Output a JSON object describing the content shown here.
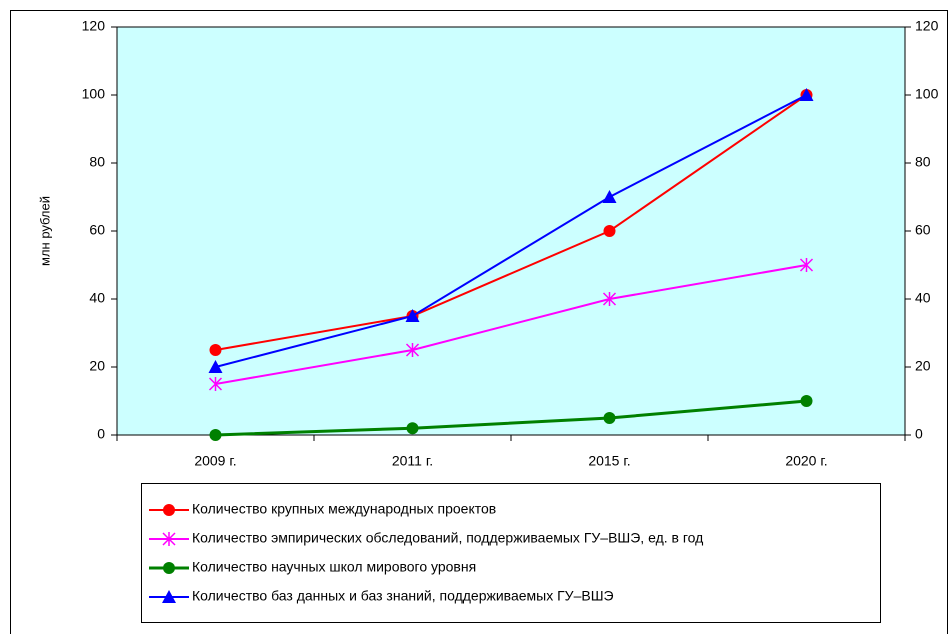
{
  "chart_data": {
    "type": "line",
    "y_label": "млн рублей",
    "categories": [
      "2009 г.",
      "2011 г.",
      "2015 г.",
      "2020 г."
    ],
    "series": [
      {
        "name": "Количество крупных международных проектов",
        "color": "#ff0000",
        "marker": "circle",
        "values": [
          25,
          35,
          60,
          100
        ]
      },
      {
        "name": "Количество эмпирических обследований, поддерживаемых ГУ–ВШЭ, ед. в год",
        "color": "#ff00ff",
        "marker": "asterisk",
        "values": [
          15,
          25,
          40,
          50
        ]
      },
      {
        "name": "Количество научных школ мирового уровня",
        "color": "#008000",
        "marker": "circle",
        "values": [
          0,
          2,
          5,
          10
        ]
      },
      {
        "name": "Количество баз данных и баз знаний, поддерживаемых ГУ–ВШЭ",
        "color": "#0000ff",
        "marker": "triangle",
        "values": [
          20,
          35,
          70,
          100
        ]
      }
    ],
    "ylim": [
      0,
      120
    ],
    "yticks": [
      0,
      20,
      40,
      60,
      80,
      100,
      120
    ],
    "y2lim": [
      0,
      120
    ],
    "y2ticks": [
      0,
      20,
      40,
      60,
      80,
      100,
      120
    ],
    "plot_background": "#ccffff",
    "legend": "bottom"
  }
}
